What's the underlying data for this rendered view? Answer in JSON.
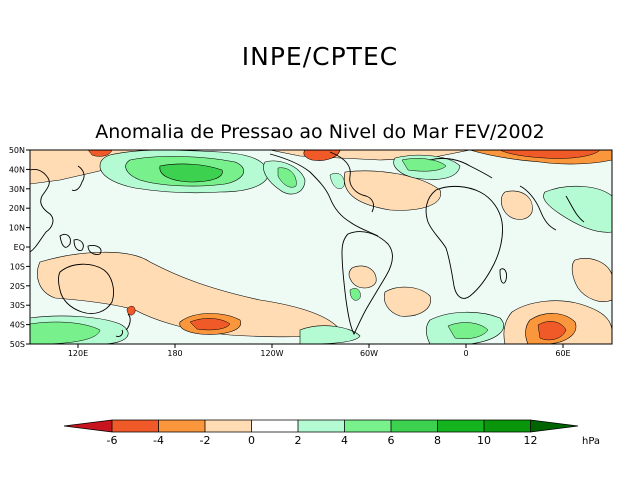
{
  "header": {
    "agency": "INPE/CPTEC",
    "map_title": "Anomalia de Pressao ao Nivel do Mar FEV/2002"
  },
  "map": {
    "latitude_labels": [
      "50N",
      "40N",
      "30N",
      "20N",
      "10N",
      "EQ",
      "10S",
      "20S",
      "30S",
      "40S",
      "50S"
    ],
    "longitude_labels": [
      "120E",
      "180",
      "120W",
      "60W",
      "0",
      "60E"
    ]
  },
  "colorbar": {
    "ticks": [
      "-6",
      "-4",
      "-2",
      "0",
      "2",
      "4",
      "6",
      "8",
      "10",
      "12"
    ],
    "unit": "hPa",
    "colors": [
      "#c8141e",
      "#f05a28",
      "#fa963c",
      "#ffdcb4",
      "#ffffff",
      "#b4fad2",
      "#78f08c",
      "#3cd250",
      "#14b41e",
      "#0a960a",
      "#006400"
    ]
  }
}
